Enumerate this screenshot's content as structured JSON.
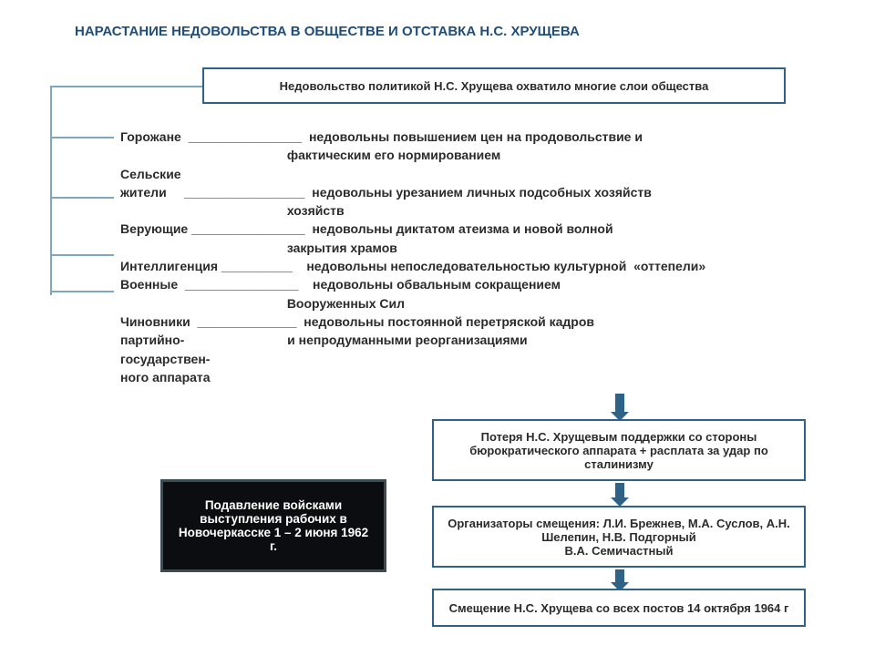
{
  "title": "НАРАСТАНИЕ НЕДОВОЛЬСТВА В ОБЩЕСТВЕ И ОТСТАВКА Н.С. ХРУЩЕВА",
  "top_box": "Недовольство политикой Н.С. Хрущева охватило многие слои общества",
  "groups": [
    {
      "left": "Горожане  ________________",
      "right": "недовольны повышением цен на продовольствие и",
      "cont": "фактическим его нормированием"
    },
    {
      "left": "Сельские",
      "right": "",
      "cont": ""
    },
    {
      "left": "жители     _________________",
      "right": "недовольны урезанием личных подсобных хозяйств",
      "cont": "хозяйств"
    },
    {
      "left": "Верующие ________________",
      "right": "недовольны диктатом атеизма и новой волной",
      "cont": "закрытия храмов"
    },
    {
      "left": "Интеллигенция __________ ",
      "right": " недовольны непоследовательностью культурной  «оттепели»",
      "cont": ""
    },
    {
      "left": "Военные  ________________ ",
      "right": " недовольны обвальным сокращением",
      "cont": "Вооруженных Сил"
    },
    {
      "left": "Чиновники  ______________",
      "right": "недовольны постоянной перетряской кадров",
      "cont": ""
    },
    {
      "left": "партийно-",
      "right": "                           и непродуманными реорганизациями",
      "cont": ""
    },
    {
      "left": "государствен-",
      "right": "",
      "cont": ""
    },
    {
      "left": "ного аппарата",
      "right": "",
      "cont": ""
    }
  ],
  "dark_box": "Подавление войсками выступления рабочих в Новочеркасске 1 – 2 июня 1962 г.",
  "box1": "Потеря Н.С. Хрущевым поддержки со стороны бюрократического аппарата + расплата за удар по сталинизму",
  "box2": "Организаторы смещения: Л.И. Брежнев, М.А. Суслов, А.Н. Шелепин, Н.В. Подгорный\nВ.А. Семичастный",
  "box3": "Смещение Н.С. Хрущева со всех постов 14 октября 1964 г",
  "colors": {
    "title": "#1f4e79",
    "border": "#2e6387",
    "connector": "#7da7bf",
    "text": "#2b2b2b",
    "dark_bg": "#0b0d10",
    "dark_border": "#3c4a52"
  }
}
